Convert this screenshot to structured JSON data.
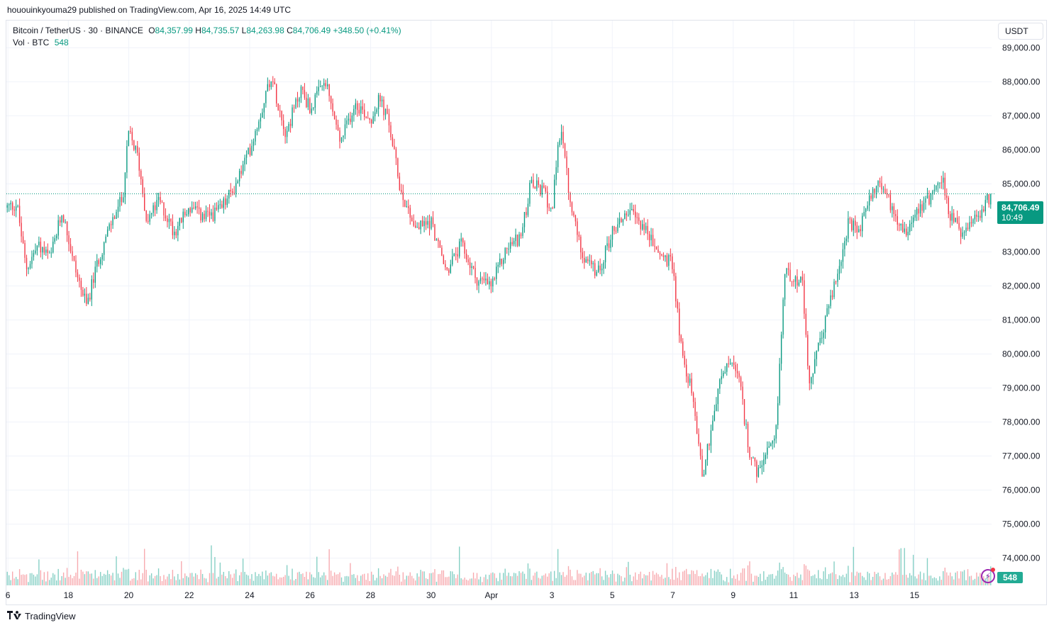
{
  "header": {
    "published_by": "hououinkyouma29 published on TradingView.com, Apr 16, 2025 14:49 UTC"
  },
  "legend": {
    "symbol": "Bitcoin / TetherUS · 30 · BINANCE",
    "o_label": "O",
    "o_value": "84,357.99",
    "h_label": "H",
    "h_value": "84,735.57",
    "l_label": "L",
    "l_value": "84,263.98",
    "c_label": "C",
    "c_value": "84,706.49",
    "change": "+348.50 (+0.41%)",
    "vol_label": "Vol · BTC",
    "vol_value": "548"
  },
  "currency_button": "USDT",
  "price_tag": {
    "price": "84,706.49",
    "countdown": "10:49"
  },
  "volume_tag": "548",
  "branding": {
    "logo_icon": "tradingview-logo-icon",
    "name": "TradingView"
  },
  "colors": {
    "up": "#089981",
    "down": "#f23645",
    "up_vol": "#84cfc4",
    "down_vol": "#f7a9ae",
    "grid": "#f0f3fa"
  },
  "chart_data": {
    "type": "candlestick",
    "title": "Bitcoin / TetherUS · 30 · BINANCE",
    "ylim": [
      73200,
      89800
    ],
    "y_ticks": [
      "89,000.00",
      "88,000.00",
      "87,000.00",
      "86,000.00",
      "85,000.00",
      "84,000.00",
      "83,000.00",
      "82,000.00",
      "81,000.00",
      "80,000.00",
      "79,000.00",
      "78,000.00",
      "77,000.00",
      "76,000.00",
      "75,000.00",
      "74,000.00"
    ],
    "y_tick_values": [
      89000,
      88000,
      87000,
      86000,
      85000,
      84000,
      83000,
      82000,
      81000,
      80000,
      79000,
      78000,
      77000,
      76000,
      75000,
      74000
    ],
    "x_ticks": [
      "6",
      "18",
      "20",
      "22",
      "24",
      "26",
      "28",
      "30",
      "Apr",
      "3",
      "5",
      "7",
      "9",
      "11",
      "13",
      "15"
    ],
    "x_tick_days": [
      0,
      2,
      4,
      6,
      8,
      10,
      12,
      14,
      16,
      18,
      20,
      22,
      24,
      26,
      28,
      30
    ],
    "x_range_days": [
      -0.05,
      32.55
    ],
    "last_price": 84706.49,
    "close_path": [
      {
        "d": -0.05,
        "p": 84300
      },
      {
        "d": 0.3,
        "p": 84400
      },
      {
        "d": 0.6,
        "p": 82500
      },
      {
        "d": 1.0,
        "p": 83200
      },
      {
        "d": 1.4,
        "p": 82800
      },
      {
        "d": 1.8,
        "p": 84200
      },
      {
        "d": 2.2,
        "p": 82600
      },
      {
        "d": 2.6,
        "p": 81400
      },
      {
        "d": 3.0,
        "p": 82800
      },
      {
        "d": 3.4,
        "p": 83800
      },
      {
        "d": 3.8,
        "p": 84600
      },
      {
        "d": 4.0,
        "p": 86500
      },
      {
        "d": 4.3,
        "p": 85800
      },
      {
        "d": 4.6,
        "p": 83900
      },
      {
        "d": 5.0,
        "p": 84500
      },
      {
        "d": 5.5,
        "p": 83600
      },
      {
        "d": 6.0,
        "p": 84300
      },
      {
        "d": 6.5,
        "p": 84000
      },
      {
        "d": 7.0,
        "p": 84200
      },
      {
        "d": 7.5,
        "p": 84900
      },
      {
        "d": 8.0,
        "p": 86000
      },
      {
        "d": 8.4,
        "p": 87200
      },
      {
        "d": 8.7,
        "p": 88200
      },
      {
        "d": 9.2,
        "p": 86500
      },
      {
        "d": 9.7,
        "p": 87800
      },
      {
        "d": 10.0,
        "p": 87200
      },
      {
        "d": 10.5,
        "p": 88000
      },
      {
        "d": 11.0,
        "p": 86200
      },
      {
        "d": 11.5,
        "p": 87400
      },
      {
        "d": 12.0,
        "p": 86900
      },
      {
        "d": 12.3,
        "p": 87500
      },
      {
        "d": 12.6,
        "p": 86800
      },
      {
        "d": 13.0,
        "p": 84800
      },
      {
        "d": 13.5,
        "p": 83700
      },
      {
        "d": 14.0,
        "p": 83900
      },
      {
        "d": 14.5,
        "p": 82400
      },
      {
        "d": 15.0,
        "p": 83200
      },
      {
        "d": 15.5,
        "p": 82200
      },
      {
        "d": 16.0,
        "p": 82000
      },
      {
        "d": 16.5,
        "p": 83100
      },
      {
        "d": 17.0,
        "p": 83500
      },
      {
        "d": 17.3,
        "p": 85000
      },
      {
        "d": 17.7,
        "p": 84800
      },
      {
        "d": 18.0,
        "p": 84200
      },
      {
        "d": 18.3,
        "p": 86800
      },
      {
        "d": 18.6,
        "p": 84400
      },
      {
        "d": 19.0,
        "p": 83000
      },
      {
        "d": 19.5,
        "p": 82300
      },
      {
        "d": 20.0,
        "p": 83600
      },
      {
        "d": 20.5,
        "p": 84200
      },
      {
        "d": 21.0,
        "p": 83800
      },
      {
        "d": 21.5,
        "p": 83000
      },
      {
        "d": 22.0,
        "p": 82600
      },
      {
        "d": 22.3,
        "p": 80000
      },
      {
        "d": 22.6,
        "p": 79000
      },
      {
        "d": 22.8,
        "p": 77800
      },
      {
        "d": 23.0,
        "p": 76400
      },
      {
        "d": 23.3,
        "p": 78000
      },
      {
        "d": 23.6,
        "p": 79300
      },
      {
        "d": 23.9,
        "p": 79800
      },
      {
        "d": 24.2,
        "p": 79200
      },
      {
        "d": 24.5,
        "p": 77300
      },
      {
        "d": 24.8,
        "p": 76400
      },
      {
        "d": 25.0,
        "p": 76900
      },
      {
        "d": 25.4,
        "p": 77400
      },
      {
        "d": 25.7,
        "p": 82400
      },
      {
        "d": 26.0,
        "p": 82300
      },
      {
        "d": 26.3,
        "p": 82000
      },
      {
        "d": 26.5,
        "p": 79000
      },
      {
        "d": 26.8,
        "p": 80100
      },
      {
        "d": 27.1,
        "p": 81200
      },
      {
        "d": 27.5,
        "p": 82500
      },
      {
        "d": 27.8,
        "p": 83800
      },
      {
        "d": 28.2,
        "p": 83600
      },
      {
        "d": 28.5,
        "p": 84700
      },
      {
        "d": 28.9,
        "p": 85000
      },
      {
        "d": 29.3,
        "p": 84200
      },
      {
        "d": 29.7,
        "p": 83600
      },
      {
        "d": 30.1,
        "p": 84300
      },
      {
        "d": 30.5,
        "p": 84600
      },
      {
        "d": 30.9,
        "p": 85200
      },
      {
        "d": 31.2,
        "p": 84000
      },
      {
        "d": 31.6,
        "p": 83500
      },
      {
        "d": 32.0,
        "p": 83900
      },
      {
        "d": 32.55,
        "p": 84706.49
      }
    ]
  }
}
